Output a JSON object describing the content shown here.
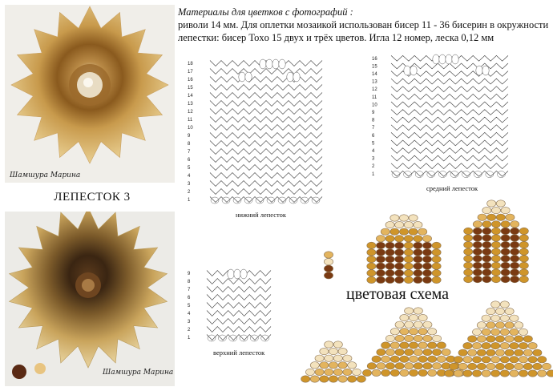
{
  "photos": {
    "top": {
      "signature": "Шамшура Марина",
      "colors": {
        "outer": "#e9cf92",
        "mid": "#c89a4c",
        "inner": "#8a5a1e",
        "center": "#efe6d2"
      }
    },
    "bottom": {
      "signature": "Шамшура Марина",
      "colors": {
        "outer": "#c9a45c",
        "mid": "#7b5a2a",
        "inner": "#3a2512",
        "center": "#5a3a1c"
      }
    }
  },
  "petal_title": "ЛЕПЕСТОК 3",
  "materials": {
    "title": "Материалы для цветков с фотографий :",
    "line1": "риволи 14 мм. Для оплетки мозаикой использован бисер 11 - 36 бисерин в окружности",
    "line2": "лепестки: бисер Toxo 15 двух и трёх цветов. Игла 12 номер, леска 0,12 мм"
  },
  "diagrams": {
    "bottom_petal": {
      "label": "нижний лепесток",
      "rows": 18
    },
    "middle_petal": {
      "label": "средний лепесток",
      "rows": 16
    },
    "top_petal": {
      "label": "верхний лепесток",
      "rows": 9
    }
  },
  "color_scheme_title": "цветовая схема",
  "bead_colors": {
    "cream": "#f3e2bd",
    "tan": "#e3b45e",
    "gold": "#cf952a",
    "brown": "#7a3a12",
    "outline": "#8a7150"
  }
}
